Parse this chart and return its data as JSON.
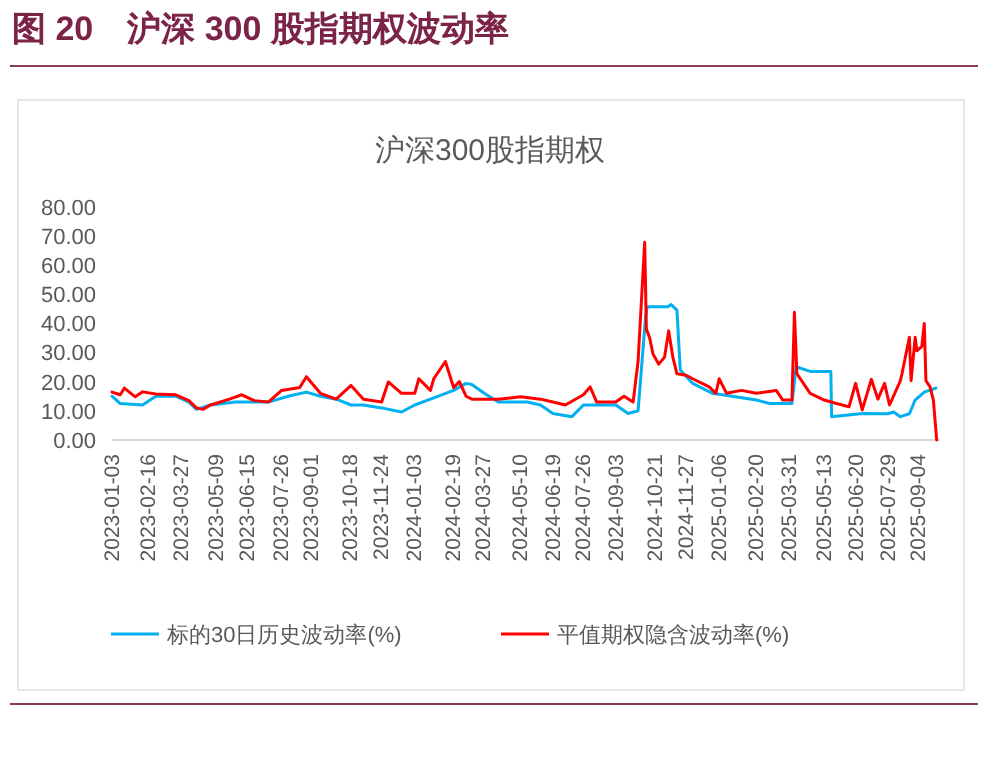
{
  "chart_data": {
    "type": "line",
    "title": "图 20　沪深 300 股指期权波动率",
    "subtitle": "沪深300股指期权",
    "legend": "bottom",
    "grid": false,
    "xlim": [
      "2023-01-03",
      "2025-09-30"
    ],
    "xticks": [
      {
        "value": "2023-01-03",
        "label": "2023-01-03"
      },
      {
        "value": "2023-02-16",
        "label": "2023-02-16"
      },
      {
        "value": "2023-03-27",
        "label": "2023-03-27"
      },
      {
        "value": "2023-05-09",
        "label": "2023-05-09"
      },
      {
        "value": "2023-06-15",
        "label": "2023-06-15"
      },
      {
        "value": "2023-07-26",
        "label": "2023-07-26"
      },
      {
        "value": "2023-09-01",
        "label": "2023-09-01"
      },
      {
        "value": "2023-10-18",
        "label": "2023-10-18"
      },
      {
        "value": "2023-11-24",
        "label": "2023-11-24"
      },
      {
        "value": "2024-01-03",
        "label": "2024-01-03"
      },
      {
        "value": "2024-02-19",
        "label": "2024-02-19"
      },
      {
        "value": "2024-03-27",
        "label": "2024-03-27"
      },
      {
        "value": "2024-05-10",
        "label": "2024-05-10"
      },
      {
        "value": "2024-06-19",
        "label": "2024-06-19"
      },
      {
        "value": "2024-07-26",
        "label": "2024-07-26"
      },
      {
        "value": "2024-09-03",
        "label": "2024-09-03"
      },
      {
        "value": "2024-10-21",
        "label": "2024-10-21"
      },
      {
        "value": "2024-11-27",
        "label": "2024-11-27"
      },
      {
        "value": "2025-01-06",
        "label": "2025-01-06"
      },
      {
        "value": "2025-02-20",
        "label": "2025-02-20"
      },
      {
        "value": "2025-03-31",
        "label": "2025-03-31"
      },
      {
        "value": "2025-05-13",
        "label": "2025-05-13"
      },
      {
        "value": "2025-06-20",
        "label": "2025-06-20"
      },
      {
        "value": "2025-07-29",
        "label": "2025-07-29"
      },
      {
        "value": "2025-09-04",
        "label": "2025-09-04"
      }
    ],
    "ylim": [
      0,
      80
    ],
    "yticks": [
      {
        "value": 0,
        "label": "0.00"
      },
      {
        "value": 10,
        "label": "10.00"
      },
      {
        "value": 20,
        "label": "20.00"
      },
      {
        "value": 30,
        "label": "30.00"
      },
      {
        "value": 40,
        "label": "40.00"
      },
      {
        "value": 50,
        "label": "50.00"
      },
      {
        "value": 60,
        "label": "60.00"
      },
      {
        "value": 70,
        "label": "70.00"
      },
      {
        "value": 80,
        "label": "80.00"
      }
    ],
    "series": [
      {
        "name": "标的30日历史波动率(%)",
        "color": "#00b0f0",
        "x": [
          "2023-01-03",
          "2023-01-13",
          "2023-02-09",
          "2023-02-25",
          "2023-03-21",
          "2023-04-06",
          "2023-04-15",
          "2023-05-02",
          "2023-06-01",
          "2023-07-11",
          "2023-08-04",
          "2023-08-26",
          "2023-09-12",
          "2023-10-01",
          "2023-10-19",
          "2023-11-03",
          "2023-11-25",
          "2023-12-19",
          "2024-01-04",
          "2024-01-23",
          "2024-02-20",
          "2024-03-06",
          "2024-03-13",
          "2024-03-28",
          "2024-04-14",
          "2024-05-19",
          "2024-06-04",
          "2024-06-19",
          "2024-07-12",
          "2024-07-26",
          "2024-09-03",
          "2024-09-18",
          "2024-09-30",
          "2024-10-09",
          "2024-10-11",
          "2024-11-05",
          "2024-11-09",
          "2024-11-16",
          "2024-11-20",
          "2024-12-05",
          "2024-12-29",
          "2025-02-20",
          "2025-03-08",
          "2025-04-04",
          "2025-04-09",
          "2025-04-26",
          "2025-05-21",
          "2025-05-22",
          "2025-06-28",
          "2025-07-29",
          "2025-08-05",
          "2025-08-13",
          "2025-08-24",
          "2025-08-31",
          "2025-09-11",
          "2025-09-25"
        ],
        "values": [
          15,
          12.5,
          12,
          15,
          15,
          13,
          10.5,
          12,
          13,
          13,
          15,
          16.4,
          15,
          14,
          12,
          12,
          11,
          9.6,
          12,
          14,
          17,
          19.4,
          19,
          16,
          13,
          13,
          12,
          9.1,
          8,
          12,
          12,
          9.1,
          10,
          42,
          45.7,
          45.7,
          46.4,
          44.5,
          24,
          19.4,
          16,
          13.7,
          12.5,
          12.5,
          25.1,
          23.5,
          23.5,
          8,
          9.1,
          9,
          9.6,
          8,
          9,
          13.7,
          16.4,
          17.8
        ]
      },
      {
        "name": "平值期权隐含波动率(%)",
        "color": "#ff0000",
        "x": [
          "2023-01-03",
          "2023-01-13",
          "2023-01-18",
          "2023-01-31",
          "2023-02-09",
          "2023-02-25",
          "2023-03-21",
          "2023-04-06",
          "2023-04-15",
          "2023-04-23",
          "2023-05-02",
          "2023-05-25",
          "2023-06-09",
          "2023-06-24",
          "2023-07-11",
          "2023-07-27",
          "2023-08-18",
          "2023-08-26",
          "2023-09-12",
          "2023-10-01",
          "2023-10-19",
          "2023-11-03",
          "2023-11-25",
          "2023-12-03",
          "2023-12-19",
          "2024-01-04",
          "2024-01-09",
          "2024-01-23",
          "2024-01-27",
          "2024-02-10",
          "2024-02-20",
          "2024-02-27",
          "2024-03-06",
          "2024-03-13",
          "2024-04-14",
          "2024-05-11",
          "2024-06-04",
          "2024-06-19",
          "2024-07-04",
          "2024-07-26",
          "2024-08-03",
          "2024-08-11",
          "2024-09-03",
          "2024-09-13",
          "2024-09-24",
          "2024-09-30",
          "2024-10-08",
          "2024-10-10",
          "2024-10-14",
          "2024-10-18",
          "2024-10-25",
          "2024-11-01",
          "2024-11-06",
          "2024-11-11",
          "2024-11-16",
          "2024-11-27",
          "2024-12-05",
          "2024-12-25",
          "2025-01-02",
          "2025-01-06",
          "2025-01-15",
          "2025-02-02",
          "2025-02-20",
          "2025-03-16",
          "2025-03-24",
          "2025-04-04",
          "2025-04-07",
          "2025-04-10",
          "2025-04-26",
          "2025-05-13",
          "2025-05-28",
          "2025-06-12",
          "2025-06-20",
          "2025-06-28",
          "2025-07-09",
          "2025-07-17",
          "2025-07-25",
          "2025-07-31",
          "2025-08-13",
          "2025-08-15",
          "2025-08-24",
          "2025-08-26",
          "2025-08-31",
          "2025-09-02",
          "2025-09-08",
          "2025-09-11",
          "2025-09-13",
          "2025-09-18",
          "2025-09-22",
          "2025-09-26"
        ],
        "values": [
          16.4,
          15.5,
          17.8,
          14.8,
          16.5,
          15.8,
          15.5,
          13.5,
          11,
          10.5,
          12,
          14,
          15.5,
          13.5,
          13,
          17,
          18,
          21.7,
          16,
          14,
          18.7,
          14,
          13,
          19.9,
          16,
          16,
          21,
          17,
          21,
          26.9,
          18,
          20,
          15,
          14,
          14,
          14.8,
          14,
          13,
          12,
          15.5,
          18.2,
          13,
          13,
          15,
          13,
          27,
          67.8,
          38,
          35,
          29.5,
          26,
          28.4,
          37.4,
          28.4,
          22.7,
          22.2,
          21,
          18.2,
          16,
          21,
          16,
          17,
          16,
          17,
          13.7,
          13.7,
          43.8,
          22.7,
          16,
          13.7,
          12.5,
          11.4,
          19.4,
          10.3,
          20.8,
          14,
          19.4,
          12,
          20.3,
          22.7,
          35.2,
          20.3,
          35.2,
          30.6,
          32,
          39.9,
          20.3,
          18.2,
          13.7,
          0
        ]
      }
    ]
  }
}
